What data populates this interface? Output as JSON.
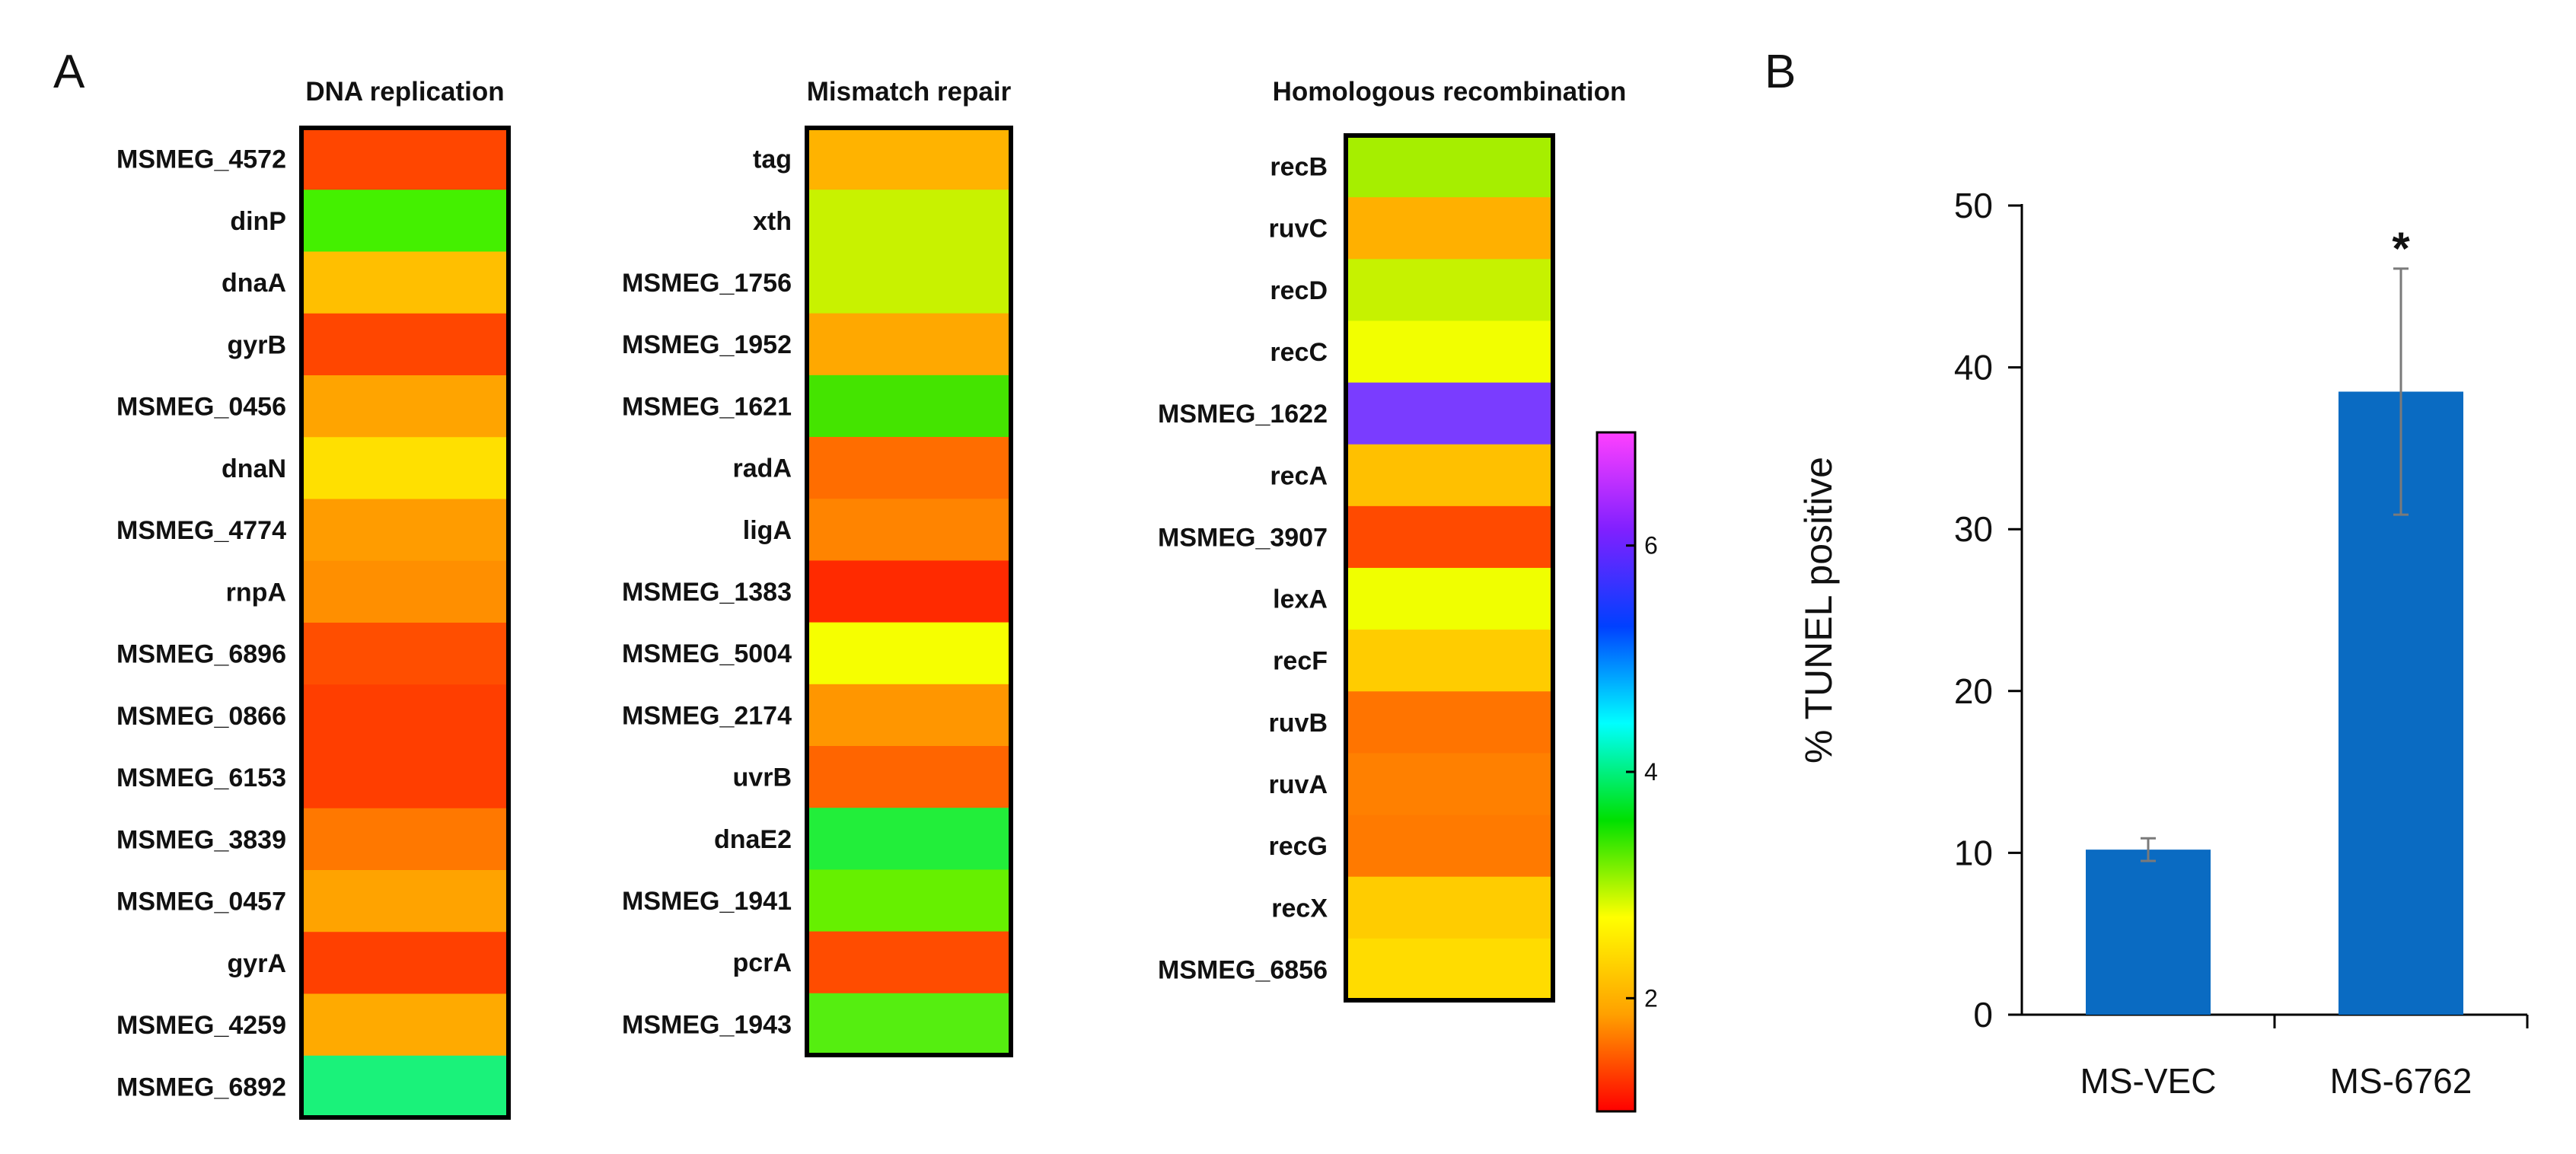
{
  "panels": {
    "a": "A",
    "b": "B"
  },
  "chart_data": [
    {
      "type": "heatmap",
      "title": "DNA replication",
      "colors": [
        "#ff4600",
        "#44f000",
        "#ffbf00",
        "#ff4600",
        "#ffa400",
        "#ffe000",
        "#ff9c00",
        "#ff8f00",
        "#ff4e00",
        "#ff3e00",
        "#ff3e00",
        "#ff7800",
        "#ffa300",
        "#ff4000",
        "#ffaa00",
        "#1af27a"
      ],
      "values": [
        {
          "label": "MSMEG_4572"
        },
        {
          "label": "dinP"
        },
        {
          "label": "dnaA"
        },
        {
          "label": "gyrB"
        },
        {
          "label": "MSMEG_0456"
        },
        {
          "label": "dnaN"
        },
        {
          "label": "MSMEG_4774"
        },
        {
          "label": "rnpA"
        },
        {
          "label": "MSMEG_6896"
        },
        {
          "label": "MSMEG_0866"
        },
        {
          "label": "MSMEG_6153"
        },
        {
          "label": "MSMEG_3839"
        },
        {
          "label": "MSMEG_0457"
        },
        {
          "label": "gyrA"
        },
        {
          "label": "MSMEG_4259"
        },
        {
          "label": "MSMEG_6892"
        }
      ]
    },
    {
      "type": "heatmap",
      "title": "Mismatch repair",
      "colors": [
        "#ffb300",
        "#c8f200",
        "#c8f200",
        "#ffa800",
        "#44e400",
        "#ff6d00",
        "#ff8400",
        "#ff2a00",
        "#f6ff00",
        "#ff9600",
        "#ff6500",
        "#22ee3a",
        "#66f000",
        "#ff4c00",
        "#55ee10"
      ],
      "values": [
        {
          "label": "tag"
        },
        {
          "label": "xth"
        },
        {
          "label": "MSMEG_1756"
        },
        {
          "label": "MSMEG_1952"
        },
        {
          "label": "MSMEG_1621"
        },
        {
          "label": "radA"
        },
        {
          "label": "ligA"
        },
        {
          "label": "MSMEG_1383"
        },
        {
          "label": "MSMEG_5004"
        },
        {
          "label": "MSMEG_2174"
        },
        {
          "label": "uvrB"
        },
        {
          "label": "dnaE2"
        },
        {
          "label": "MSMEG_1941"
        },
        {
          "label": "pcrA"
        },
        {
          "label": "MSMEG_1943"
        }
      ]
    },
    {
      "type": "heatmap",
      "title": "Homologous recombination",
      "colors": [
        "#a6ee00",
        "#ffb000",
        "#c6f200",
        "#f2ff00",
        "#7a3cff",
        "#ffc000",
        "#ff4a00",
        "#f0ff00",
        "#ffcc00",
        "#ff7400",
        "#ff8000",
        "#ff7a00",
        "#ffcc00",
        "#ffdc00"
      ],
      "values": [
        {
          "label": "recB"
        },
        {
          "label": "ruvC"
        },
        {
          "label": "recD"
        },
        {
          "label": "recC"
        },
        {
          "label": "MSMEG_1622"
        },
        {
          "label": "recA"
        },
        {
          "label": "MSMEG_3907"
        },
        {
          "label": "lexA"
        },
        {
          "label": "recF"
        },
        {
          "label": "ruvB"
        },
        {
          "label": "ruvA"
        },
        {
          "label": "recG"
        },
        {
          "label": "recX"
        },
        {
          "label": "MSMEG_6856"
        }
      ]
    },
    {
      "type": "colorbar",
      "range": [
        1,
        7
      ],
      "ticks": [
        2,
        4,
        6
      ],
      "stops": [
        "#ff0000",
        "#ffa000",
        "#ffff00",
        "#00e000",
        "#00ffff",
        "#0040ff",
        "#8020ff",
        "#ff40ff"
      ]
    },
    {
      "type": "bar",
      "categories": [
        "MS-VEC",
        "MS-6762"
      ],
      "values": [
        10.2,
        38.5
      ],
      "errors": [
        0.7,
        7.6
      ],
      "annotations": [
        "",
        "*"
      ],
      "ylabel": "% TUNEL positive",
      "ylim": [
        0,
        50
      ],
      "yticks": [
        0,
        10,
        20,
        30,
        40,
        50
      ],
      "bar_color": "#0a6bc2",
      "grid": false
    }
  ]
}
